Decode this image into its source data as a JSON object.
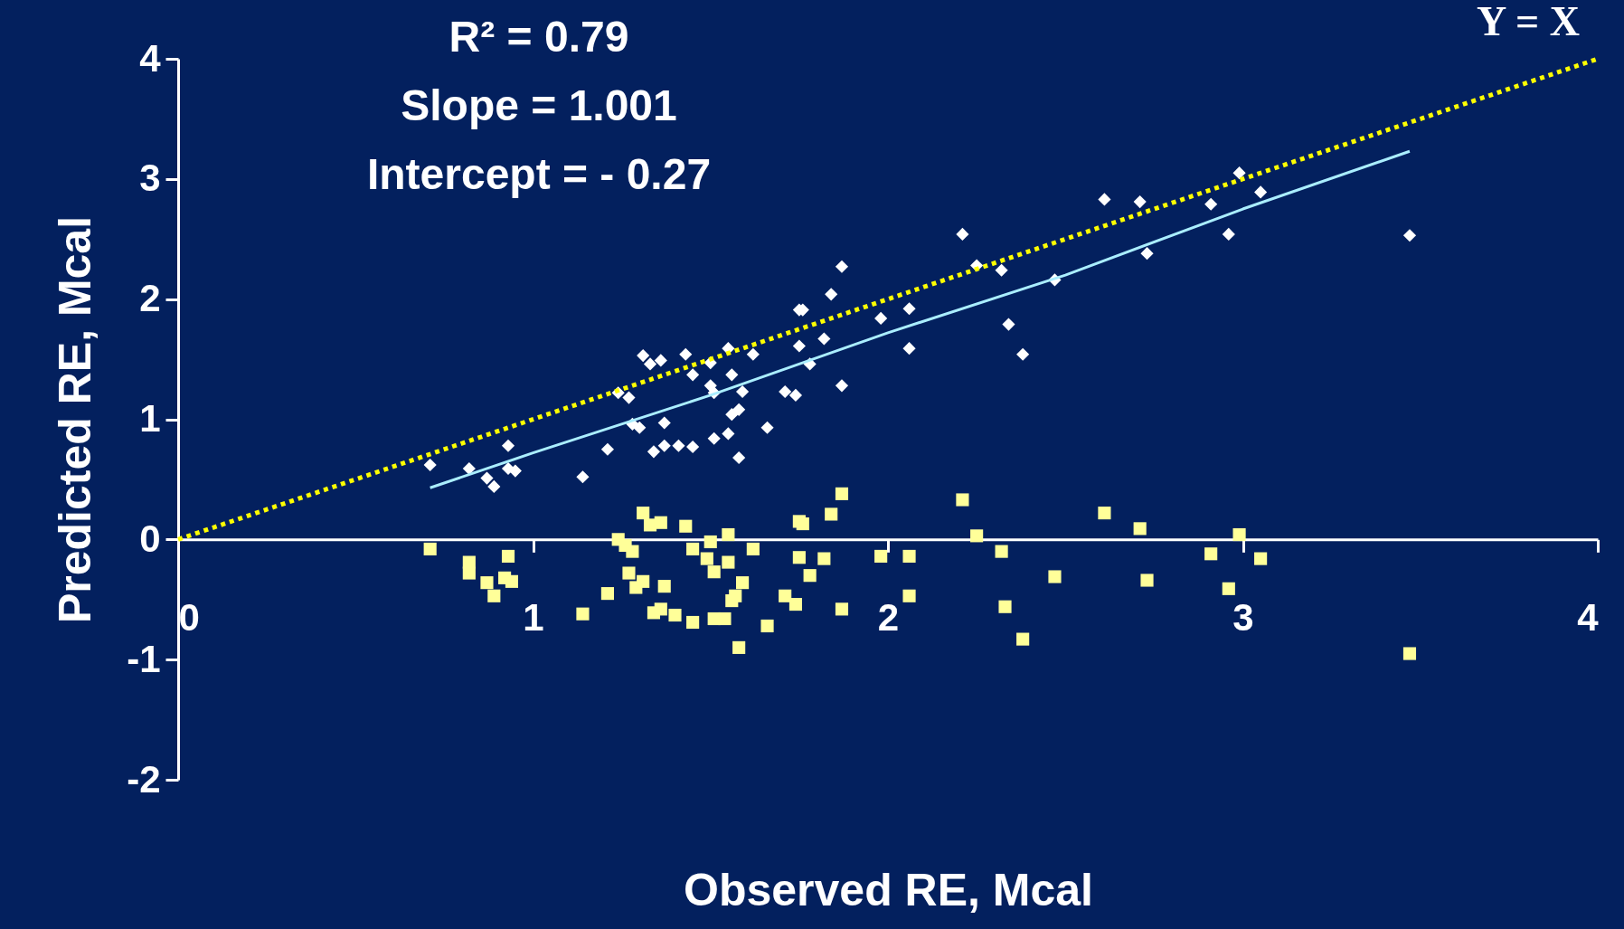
{
  "chart_data": {
    "type": "scatter",
    "xlabel": "Observed RE, Mcal",
    "ylabel": "Predicted RE, Mcal",
    "xlim": [
      0,
      4
    ],
    "ylim": [
      -2,
      4
    ],
    "xticks": [
      0,
      1,
      2,
      3,
      4
    ],
    "yticks": [
      -2,
      -1,
      0,
      1,
      2,
      3,
      4
    ],
    "grid": false,
    "annotations": [
      "R² = 0.79",
      "Slope = 1.001",
      "Intercept = - 0.27"
    ],
    "series": [
      {
        "type": "scatter",
        "marker": "diamond",
        "color": "#ffffff",
        "x": [
          0.71,
          0.82,
          0.87,
          0.89,
          0.93,
          0.93,
          0.95,
          1.14,
          1.21,
          1.24,
          1.27,
          1.28,
          1.3,
          1.31,
          1.33,
          1.34,
          1.36,
          1.37,
          1.37,
          1.41,
          1.43,
          1.45,
          1.45,
          1.5,
          1.5,
          1.51,
          1.51,
          1.55,
          1.55,
          1.56,
          1.56,
          1.58,
          1.58,
          1.59,
          1.62,
          1.66,
          1.71,
          1.74,
          1.75,
          1.76,
          1.75,
          1.78,
          1.82,
          1.84,
          1.87,
          1.87,
          1.98,
          2.06,
          2.06,
          2.21,
          2.25,
          2.32,
          2.34,
          2.38,
          2.47,
          2.61,
          2.71,
          2.73,
          2.91,
          2.96,
          2.99,
          3.05,
          3.47
        ],
        "values": [
          0.62,
          0.59,
          0.51,
          0.44,
          0.78,
          0.59,
          0.57,
          0.52,
          0.75,
          1.22,
          1.18,
          0.96,
          0.93,
          1.53,
          1.46,
          0.73,
          1.49,
          0.78,
          0.97,
          0.78,
          1.54,
          1.37,
          0.77,
          1.47,
          1.28,
          1.22,
          0.84,
          1.59,
          0.88,
          1.37,
          1.04,
          1.08,
          0.68,
          1.23,
          1.54,
          0.93,
          1.23,
          1.2,
          1.91,
          1.91,
          1.61,
          1.46,
          1.67,
          2.04,
          2.27,
          1.28,
          1.84,
          1.92,
          1.59,
          2.54,
          2.28,
          2.24,
          1.79,
          1.54,
          2.16,
          2.83,
          2.81,
          2.38,
          2.79,
          2.54,
          3.05,
          2.89,
          2.53
        ]
      },
      {
        "type": "scatter",
        "marker": "square",
        "color": "#ffff99",
        "x": [
          0.71,
          0.82,
          0.82,
          0.87,
          0.89,
          0.93,
          0.92,
          0.94,
          1.14,
          1.21,
          1.24,
          1.26,
          1.28,
          1.27,
          1.29,
          1.31,
          1.31,
          1.33,
          1.36,
          1.34,
          1.36,
          1.37,
          1.4,
          1.43,
          1.45,
          1.45,
          1.49,
          1.5,
          1.51,
          1.51,
          1.54,
          1.55,
          1.55,
          1.56,
          1.57,
          1.59,
          1.58,
          1.62,
          1.66,
          1.71,
          1.74,
          1.75,
          1.76,
          1.75,
          1.78,
          1.82,
          1.84,
          1.87,
          1.87,
          1.98,
          2.06,
          2.06,
          2.21,
          2.25,
          2.32,
          2.33,
          2.38,
          2.47,
          2.61,
          2.71,
          2.73,
          2.91,
          2.96,
          2.99,
          3.05,
          3.47
        ],
        "values": [
          -0.08,
          -0.19,
          -0.28,
          -0.36,
          -0.47,
          -0.14,
          -0.32,
          -0.35,
          -0.62,
          -0.45,
          0.0,
          -0.05,
          -0.1,
          -0.28,
          -0.4,
          -0.35,
          0.22,
          0.12,
          0.14,
          -0.61,
          -0.58,
          -0.39,
          -0.63,
          0.11,
          -0.08,
          -0.69,
          -0.16,
          -0.02,
          -0.27,
          -0.66,
          -0.66,
          0.04,
          -0.19,
          -0.51,
          -0.47,
          -0.36,
          -0.9,
          -0.08,
          -0.72,
          -0.47,
          -0.54,
          0.15,
          0.13,
          -0.15,
          -0.3,
          -0.16,
          0.21,
          0.38,
          -0.58,
          -0.14,
          -0.14,
          -0.47,
          0.33,
          0.03,
          -0.1,
          -0.56,
          -0.83,
          -0.31,
          0.22,
          0.09,
          -0.34,
          -0.12,
          -0.41,
          0.04,
          -0.16,
          -0.95
        ]
      },
      {
        "type": "line",
        "line_style": "solid",
        "color": "#aaeeff",
        "x": [
          0.71,
          1.0,
          1.5,
          2.0,
          2.5,
          3.0,
          3.47
        ],
        "values": [
          0.43,
          0.72,
          1.2,
          1.72,
          2.2,
          2.75,
          3.23
        ]
      },
      {
        "type": "line",
        "line_style": "dotted",
        "name": "Y = X",
        "color": "#ffff00",
        "x": [
          0,
          4
        ],
        "values": [
          0,
          4
        ]
      }
    ]
  }
}
